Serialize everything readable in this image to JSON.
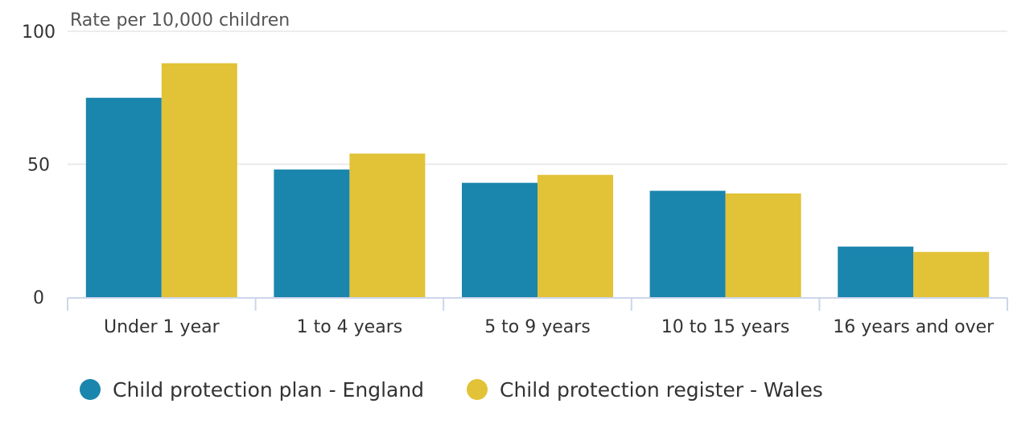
{
  "chart_data": {
    "type": "bar",
    "title": "",
    "ylabel": "Rate per 10,000 children",
    "xlabel": "",
    "ylim": [
      0,
      100
    ],
    "yticks": [
      0,
      50,
      100
    ],
    "grid": true,
    "legend_position": "bottom-left",
    "categories": [
      "Under 1 year",
      "1 to 4 years",
      "5 to 9 years",
      "10 to 15 years",
      "16 years and over"
    ],
    "series": [
      {
        "name": "Child protection plan - England",
        "color": "#1a85ad",
        "values": [
          75,
          48,
          43,
          40,
          19
        ]
      },
      {
        "name": "Child protection register - Wales",
        "color": "#e2c236",
        "values": [
          88,
          54,
          46,
          39,
          17
        ]
      }
    ]
  }
}
